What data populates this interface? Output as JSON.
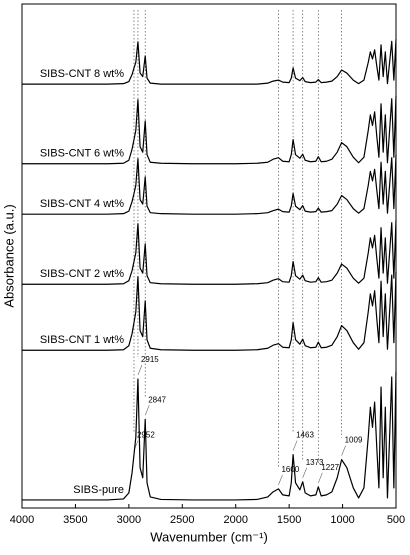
{
  "chart_data": {
    "type": "line",
    "x_label": "Wavenumber (cm⁻¹)",
    "y_label": "Absorbance (a.u.)",
    "color": "#000000",
    "xlim": [
      4000,
      500
    ],
    "xticks": [
      4000,
      3500,
      3000,
      2500,
      2000,
      1500,
      1000,
      500
    ],
    "ylim": [
      0,
      100
    ],
    "x": [
      4000,
      3500,
      3200,
      3050,
      3000,
      2970,
      2952,
      2935,
      2915,
      2895,
      2870,
      2847,
      2830,
      2800,
      2700,
      2400,
      2000,
      1800,
      1700,
      1650,
      1600,
      1560,
      1500,
      1480,
      1463,
      1440,
      1400,
      1373,
      1350,
      1300,
      1250,
      1227,
      1200,
      1150,
      1100,
      1050,
      1009,
      960,
      900,
      850,
      800,
      760,
      740,
      720,
      700,
      680,
      660,
      640,
      620,
      600,
      580,
      560,
      540,
      520,
      500
    ],
    "series": [
      {
        "name": "SIBS-pure",
        "values": [
          1.6,
          1.6,
          1.6,
          1.8,
          3,
          7,
          10.6,
          14,
          25.6,
          8,
          6,
          17.6,
          5,
          2.2,
          1.7,
          1.6,
          1.6,
          1.7,
          2.2,
          3.2,
          3.8,
          2.6,
          2.4,
          5,
          10.6,
          5,
          3.6,
          5.2,
          3,
          2.4,
          2.6,
          4.2,
          2.4,
          2.6,
          3.2,
          6,
          9.6,
          8,
          4,
          2,
          4,
          14,
          20,
          16,
          21,
          12,
          4,
          24,
          6,
          20,
          2,
          14,
          26,
          4,
          27
        ]
      },
      {
        "name": "SIBS-CNT 1 wt%",
        "values": [
          31.3,
          31.3,
          31.3,
          31.4,
          32.2,
          34.6,
          36.8,
          38.9,
          45.9,
          35.2,
          34,
          41.1,
          33.4,
          31.7,
          31.4,
          31.3,
          31.3,
          31.4,
          31.7,
          32.3,
          32.6,
          31.9,
          31.8,
          33.4,
          36.8,
          33.4,
          32.5,
          33.5,
          32.2,
          31.8,
          31.9,
          32.9,
          31.8,
          31.9,
          32.3,
          34,
          36.2,
          35.2,
          32.8,
          31.5,
          32.8,
          38.9,
          42.5,
          40.1,
          43.1,
          37.6,
          32.8,
          45,
          34,
          42.5,
          31.5,
          38.9,
          46.2,
          32.8,
          46.8
        ]
      },
      {
        "name": "SIBS-CNT 2 wt%",
        "values": [
          44.4,
          44.4,
          44.4,
          44.5,
          45.1,
          47.1,
          48.9,
          50.6,
          56.4,
          47.6,
          46.6,
          52.4,
          46.1,
          44.7,
          44.5,
          44.4,
          44.4,
          44.5,
          44.7,
          45.2,
          45.5,
          44.9,
          44.8,
          46.1,
          48.9,
          46.1,
          45.4,
          46.2,
          45.1,
          44.8,
          44.9,
          45.7,
          44.8,
          44.9,
          45.2,
          46.6,
          48.4,
          47.6,
          45.6,
          44.6,
          45.6,
          50.6,
          53.6,
          51.6,
          54.1,
          49.6,
          45.6,
          55.6,
          46.6,
          53.6,
          44.6,
          50.6,
          56.6,
          45.6,
          57.1
        ]
      },
      {
        "name": "SIBS-CNT 4 wt%",
        "values": [
          58.3,
          58.3,
          58.3,
          58.4,
          58.9,
          60.8,
          62.4,
          64,
          69.3,
          61.2,
          60.3,
          65.7,
          59.9,
          58.6,
          58.4,
          58.3,
          58.3,
          58.4,
          58.6,
          59,
          59.3,
          58.8,
          58.7,
          59.9,
          62.4,
          59.9,
          59.2,
          60,
          58.9,
          58.7,
          58.8,
          59.5,
          58.7,
          58.8,
          59,
          60.3,
          62,
          61.2,
          59.4,
          58.5,
          59.4,
          64,
          66.8,
          64.9,
          67.2,
          63.1,
          59.4,
          68.6,
          60.3,
          66.8,
          58.5,
          64,
          69.5,
          59.4,
          70
        ]
      },
      {
        "name": "SIBS-CNT 6 wt%",
        "values": [
          68.3,
          68.3,
          68.3,
          68.4,
          69,
          71.2,
          73.1,
          74.9,
          81,
          71.7,
          70.6,
          76.8,
          70.1,
          68.6,
          68.4,
          68.3,
          68.3,
          68.4,
          68.6,
          69.2,
          69.5,
          68.8,
          68.7,
          70.1,
          73.1,
          70.1,
          69.4,
          70.2,
          69,
          68.7,
          68.8,
          69.7,
          68.7,
          68.8,
          69.2,
          70.6,
          72.5,
          71.7,
          69.6,
          68.5,
          69.6,
          74.9,
          78,
          75.9,
          78.6,
          73.8,
          69.6,
          80.2,
          70.6,
          78,
          68.5,
          74.9,
          81.2,
          69.6,
          81.8
        ]
      },
      {
        "name": "SIBS-CNT 8 wt%",
        "values": [
          84.1,
          84.1,
          84.1,
          84.2,
          84.6,
          86,
          87.3,
          88.4,
          92.5,
          86.3,
          85.6,
          89.7,
          85.3,
          84.3,
          84.1,
          84.1,
          84.1,
          84.1,
          84.3,
          84.7,
          84.9,
          84.5,
          84.4,
          85.3,
          87.3,
          85.3,
          84.8,
          85.4,
          84.6,
          84.4,
          84.5,
          85,
          84.4,
          84.5,
          84.7,
          85.6,
          86.9,
          86.3,
          84.9,
          84.2,
          84.9,
          88.4,
          90.5,
          89.1,
          90.9,
          87.7,
          84.9,
          91.9,
          85.6,
          90.5,
          84.2,
          88.4,
          92.6,
          84.9,
          93
        ]
      }
    ],
    "peaks": [
      2952,
      2915,
      2847,
      1600,
      1463,
      1373,
      1227,
      1009
    ]
  }
}
